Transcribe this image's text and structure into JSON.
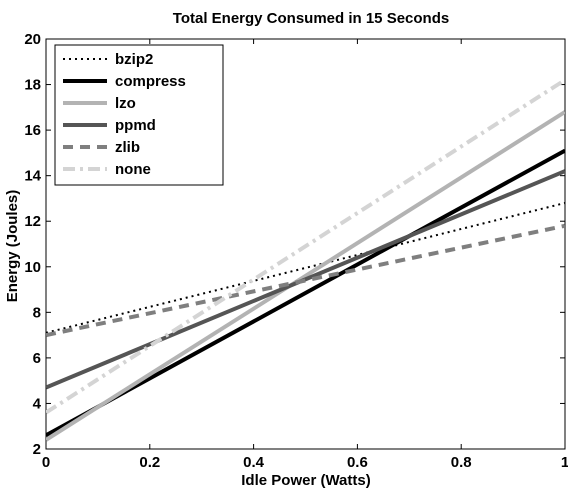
{
  "chart_data": {
    "type": "line",
    "title": "Total Energy Consumed in 15 Seconds",
    "xlabel": "Idle Power (Watts)",
    "ylabel": "Energy (Joules)",
    "xlim": [
      0,
      1
    ],
    "ylim": [
      2,
      20
    ],
    "xticks": [
      0,
      0.2,
      0.4,
      0.6,
      0.8,
      1
    ],
    "xtick_labels": [
      "0",
      "0.2",
      "0.4",
      "0.6",
      "0.8",
      "1"
    ],
    "yticks": [
      2,
      4,
      6,
      8,
      10,
      12,
      14,
      16,
      18,
      20
    ],
    "ytick_labels": [
      "2",
      "4",
      "6",
      "8",
      "10",
      "12",
      "14",
      "16",
      "18",
      "20"
    ],
    "grid": false,
    "legend_position": "top-left",
    "series": [
      {
        "name": "bzip2",
        "x": [
          0,
          1
        ],
        "y": [
          7.1,
          12.8
        ],
        "color": "#000000",
        "style": "dotted",
        "width": 2
      },
      {
        "name": "compress",
        "x": [
          0,
          1
        ],
        "y": [
          2.6,
          15.1
        ],
        "color": "#000000",
        "style": "solid",
        "width": 4
      },
      {
        "name": "lzo",
        "x": [
          0,
          1
        ],
        "y": [
          2.4,
          16.8
        ],
        "color": "#b3b3b3",
        "style": "solid",
        "width": 4
      },
      {
        "name": "ppmd",
        "x": [
          0,
          1
        ],
        "y": [
          4.7,
          14.2
        ],
        "color": "#555555",
        "style": "solid",
        "width": 4
      },
      {
        "name": "zlib",
        "x": [
          0,
          1
        ],
        "y": [
          7.0,
          11.8
        ],
        "color": "#7f7f7f",
        "style": "dashed",
        "width": 4
      },
      {
        "name": "none",
        "x": [
          0,
          1
        ],
        "y": [
          3.6,
          18.2
        ],
        "color": "#d4d4d4",
        "style": "dashdot",
        "width": 4
      }
    ]
  }
}
